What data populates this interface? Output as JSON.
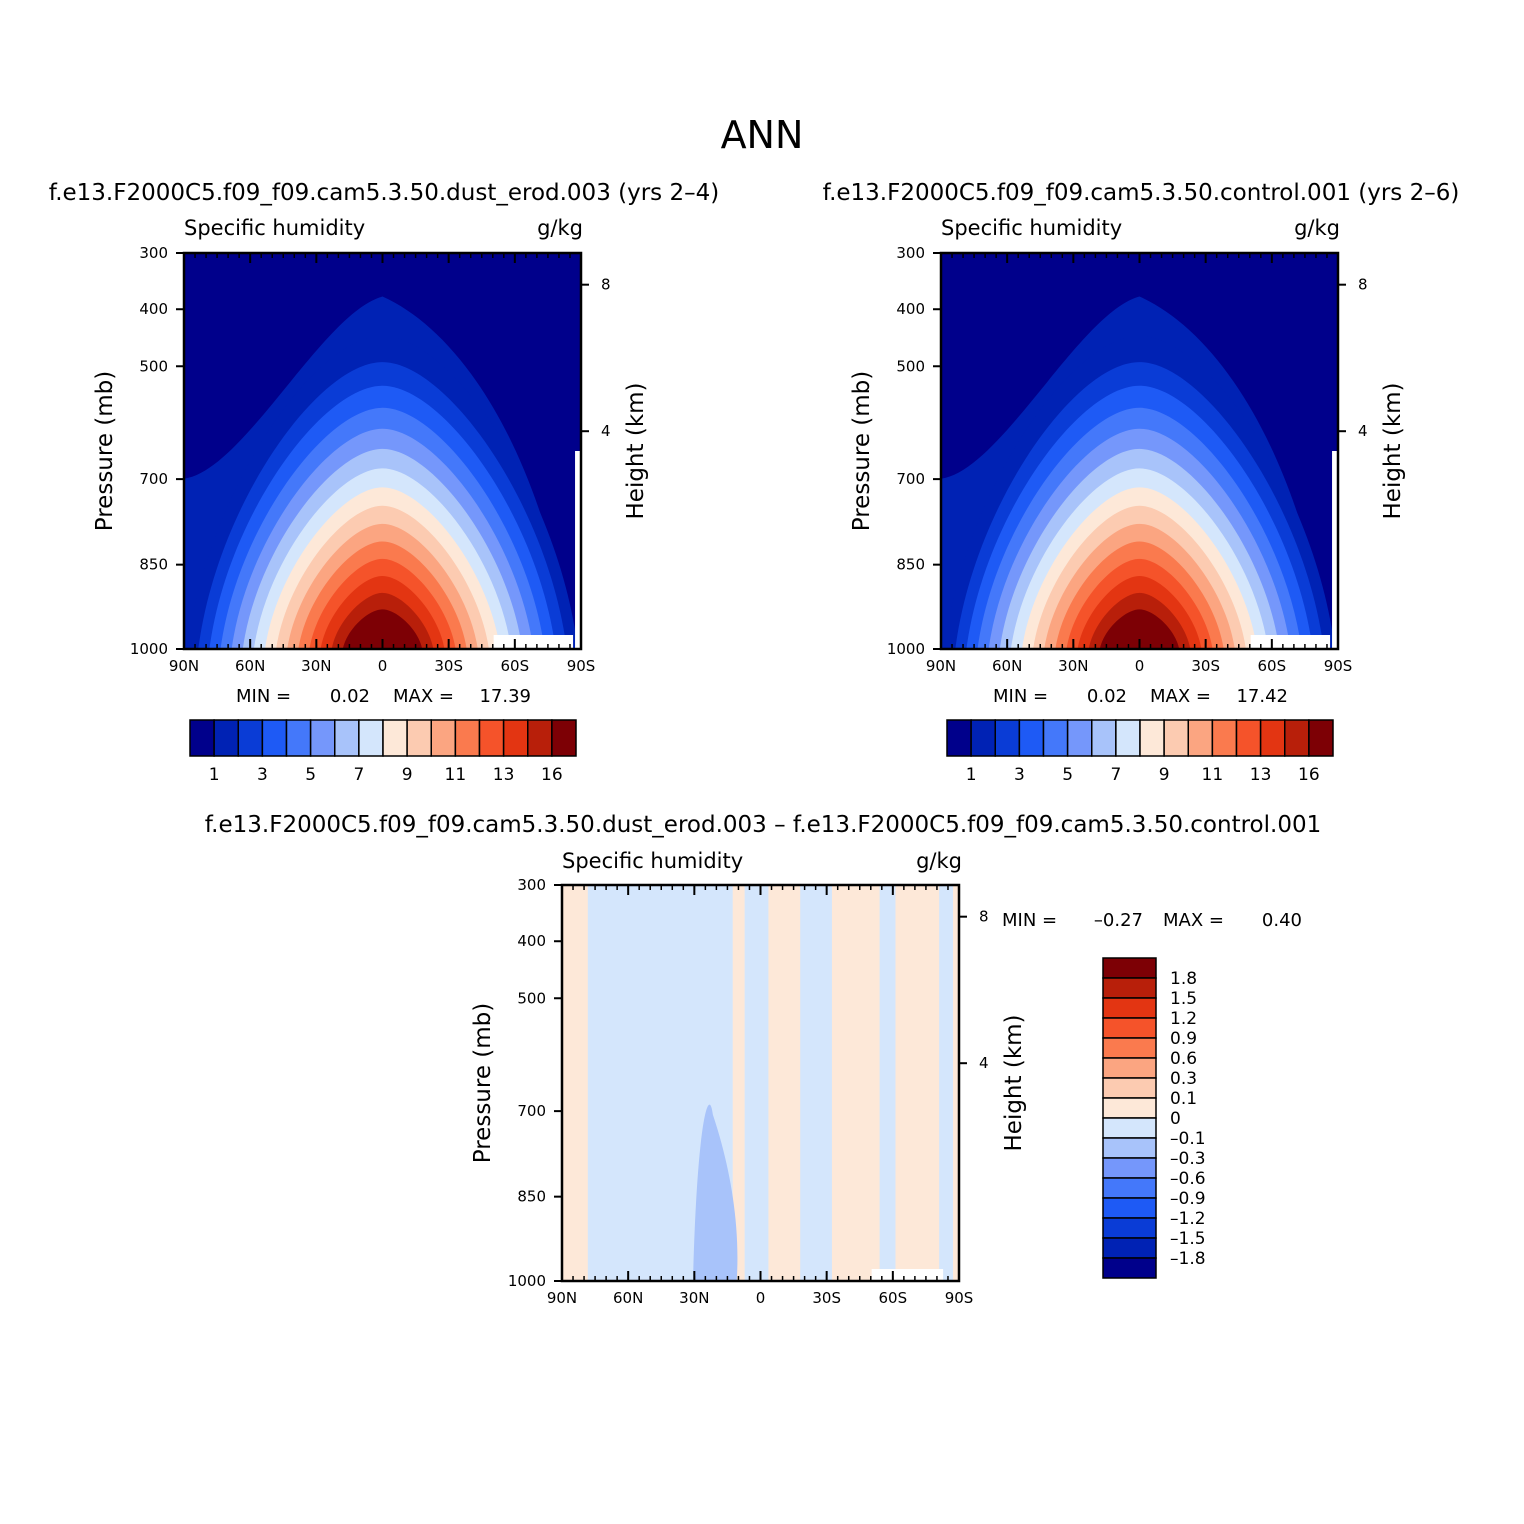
{
  "figure": {
    "title": "ANN",
    "colors": {
      "absolute_palette": [
        "#00008b",
        "#0022b4",
        "#0a3cd6",
        "#1e5af5",
        "#4478fa",
        "#7597fb",
        "#a8c3fa",
        "#d4e6fc",
        "#fde8d8",
        "#fccbb1",
        "#fba581",
        "#fa7a4e",
        "#f5532a",
        "#e33512",
        "#b81f0a",
        "#7d0005"
      ],
      "difference_palette": [
        "#00008b",
        "#0022b4",
        "#0a3cd6",
        "#1e5af5",
        "#4478fa",
        "#7597fb",
        "#a8c3fa",
        "#d4e6fc",
        "#fde8d8",
        "#fccbb1",
        "#fba581",
        "#fa7a4e",
        "#f5532a",
        "#e33512",
        "#b81f0a",
        "#7d0005"
      ]
    }
  },
  "chart_data": [
    {
      "type": "heatmap",
      "panel": "test",
      "case_title": "f.e13.F2000C5.f09_f09.cam5.3.50.dust_erod.003 (yrs 2–4)",
      "variable_label": "Specific humidity",
      "units_label": "g/kg",
      "ylabel": "Pressure (mb)",
      "ylabel_right": "Height (km)",
      "x_ticks": [
        "90N",
        "60N",
        "30N",
        "0",
        "30S",
        "60S",
        "90S"
      ],
      "y_ticks": [
        "300",
        "400",
        "500",
        "700",
        "850",
        "1000"
      ],
      "y_ticks_right": [
        "8",
        "4"
      ],
      "x_range": [
        90,
        -90
      ],
      "y_range": [
        1000,
        300
      ],
      "stats": {
        "min_label": "MIN =",
        "min_value": "0.02",
        "max_label": "MAX =",
        "max_value": "17.39"
      },
      "colorbar_labels": [
        "1",
        "3",
        "5",
        "7",
        "9",
        "11",
        "13",
        "16"
      ]
    },
    {
      "type": "heatmap",
      "panel": "control",
      "case_title": "f.e13.F2000C5.f09_f09.cam5.3.50.control.001 (yrs 2–6)",
      "variable_label": "Specific humidity",
      "units_label": "g/kg",
      "ylabel": "Pressure (mb)",
      "ylabel_right": "Height (km)",
      "x_ticks": [
        "90N",
        "60N",
        "30N",
        "0",
        "30S",
        "60S",
        "90S"
      ],
      "y_ticks": [
        "300",
        "400",
        "500",
        "700",
        "850",
        "1000"
      ],
      "y_ticks_right": [
        "8",
        "4"
      ],
      "x_range": [
        90,
        -90
      ],
      "y_range": [
        1000,
        300
      ],
      "stats": {
        "min_label": "MIN =",
        "min_value": "0.02",
        "max_label": "MAX =",
        "max_value": "17.42"
      },
      "colorbar_labels": [
        "1",
        "3",
        "5",
        "7",
        "9",
        "11",
        "13",
        "16"
      ]
    },
    {
      "type": "heatmap",
      "panel": "difference",
      "case_title": "f.e13.F2000C5.f09_f09.cam5.3.50.dust_erod.003 – f.e13.F2000C5.f09_f09.cam5.3.50.control.001",
      "variable_label": "Specific humidity",
      "units_label": "g/kg",
      "ylabel": "Pressure (mb)",
      "ylabel_right": "Height (km)",
      "x_ticks": [
        "90N",
        "60N",
        "30N",
        "0",
        "30S",
        "60S",
        "90S"
      ],
      "y_ticks": [
        "300",
        "400",
        "500",
        "700",
        "850",
        "1000"
      ],
      "y_ticks_right": [
        "8",
        "4"
      ],
      "x_range": [
        90,
        -90
      ],
      "y_range": [
        1000,
        300
      ],
      "stats": {
        "min_label": "MIN =",
        "min_value": "–0.27",
        "max_label": "MAX =",
        "max_value": "0.40"
      },
      "colorbar_labels": [
        "1.8",
        "1.5",
        "1.2",
        "0.9",
        "0.6",
        "0.3",
        "0.1",
        "0",
        "–0.1",
        "–0.3",
        "–0.6",
        "–0.9",
        "–1.2",
        "–1.5",
        "–1.8"
      ]
    }
  ]
}
